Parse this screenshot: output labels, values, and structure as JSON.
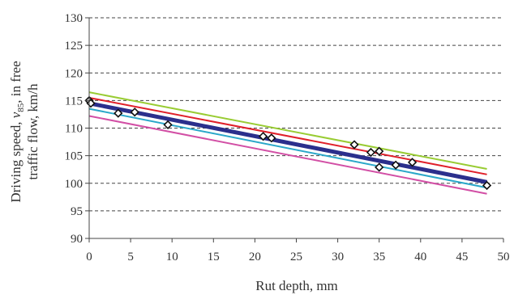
{
  "chart_data": {
    "type": "scatter",
    "xlabel": "Rut depth, mm",
    "ylabel_line1_pre": "Driving speed, ",
    "ylabel_line1_v": "v",
    "ylabel_line1_sub": "85",
    "ylabel_line1_post": ", in free",
    "ylabel_line2": "traffic flow, km/h",
    "xlim": [
      0,
      50
    ],
    "ylim": [
      90,
      130
    ],
    "xticks": [
      "0",
      "5",
      "10",
      "15",
      "20",
      "25",
      "30",
      "35",
      "40",
      "45",
      "50"
    ],
    "yticks": [
      "90",
      "95",
      "100",
      "105",
      "110",
      "115",
      "120",
      "125",
      "130"
    ],
    "grid": "horizontal dashed",
    "points": [
      {
        "x": 0,
        "y": 115
      },
      {
        "x": 0.2,
        "y": 114.5
      },
      {
        "x": 3.5,
        "y": 112.7
      },
      {
        "x": 5.5,
        "y": 112.9
      },
      {
        "x": 9.5,
        "y": 110.6
      },
      {
        "x": 21,
        "y": 108.5
      },
      {
        "x": 22,
        "y": 108.2
      },
      {
        "x": 32,
        "y": 107
      },
      {
        "x": 34,
        "y": 105.6
      },
      {
        "x": 35,
        "y": 105.8
      },
      {
        "x": 35,
        "y": 102.9
      },
      {
        "x": 37,
        "y": 103.3
      },
      {
        "x": 39,
        "y": 103.8
      },
      {
        "x": 48,
        "y": 99.6
      }
    ],
    "lines": [
      {
        "color": "#99cc33",
        "width": 2,
        "x": [
          0,
          48
        ],
        "y": [
          116.5,
          102.6
        ]
      },
      {
        "color": "#e0202a",
        "width": 2,
        "x": [
          0,
          48
        ],
        "y": [
          115.5,
          101.6
        ]
      },
      {
        "color": "#2b2f8c",
        "width": 5,
        "x": [
          0,
          48
        ],
        "y": [
          114.5,
          100.2
        ]
      },
      {
        "color": "#2aa7c9",
        "width": 2,
        "x": [
          0,
          48
        ],
        "y": [
          113.5,
          99.2
        ]
      },
      {
        "color": "#d24fa5",
        "width": 2,
        "x": [
          0,
          48
        ],
        "y": [
          112.2,
          98.1
        ]
      }
    ]
  }
}
